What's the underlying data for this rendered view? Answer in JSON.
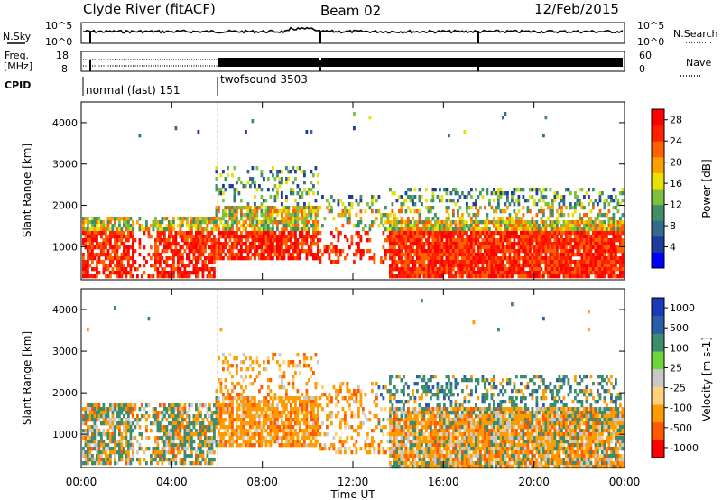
{
  "header": {
    "station": "Clyde River (fitACF)",
    "beam": "Beam 02",
    "date": "12/Feb/2015"
  },
  "strip_nsky": {
    "left_label": "N.Sky",
    "left_ticks": [
      "10^5",
      "10^0"
    ],
    "right_ticks": [
      "10^5",
      "10^0"
    ],
    "right_label": "N.Search"
  },
  "strip_freq": {
    "left_label_1": "Freq.",
    "left_label_2": "[MHz]",
    "left_ticks": [
      "18",
      "8"
    ],
    "right_ticks": [
      "60",
      "0"
    ],
    "right_label": "Nave"
  },
  "cpid": {
    "label": "CPID",
    "segments": [
      {
        "name": "normal (fast) 151",
        "start_hr": 0
      },
      {
        "name": "twofsound 3503",
        "start_hr": 6
      }
    ]
  },
  "colors": {
    "power_scale": [
      "#0000ff",
      "#1e3c9e",
      "#336b8c",
      "#3f8f6a",
      "#7fbf3f",
      "#e8e000",
      "#ffa000",
      "#ff6000",
      "#ff2000",
      "#ff0000"
    ],
    "velocity_scale": [
      "#ff0000",
      "#ff5a00",
      "#ff9a00",
      "#ffd27a",
      "#c8c8c8",
      "#6dd43a",
      "#3c8c6e",
      "#2a5ea8",
      "#1a3ab8"
    ],
    "ground_scatter": "#c0c0c0"
  },
  "chart_data": [
    {
      "type": "heatmap",
      "panel": "power",
      "ylabel": "Slant Range [km]",
      "xlabel": "",
      "xlim_hours": [
        0,
        24
      ],
      "ylim": [
        200,
        4500
      ],
      "y_ticks": [
        "1000",
        "2000",
        "3000",
        "4000"
      ],
      "colorbar_label": "Power [dB]",
      "colorbar_ticks": [
        "4",
        "8",
        "12",
        "16",
        "20",
        "24",
        "28"
      ],
      "colorbar_range": [
        0,
        30
      ]
    },
    {
      "type": "heatmap",
      "panel": "velocity",
      "ylabel": "Slant Range [km]",
      "xlabel": "Time UT",
      "xlim_hours": [
        0,
        24
      ],
      "ylim": [
        200,
        4500
      ],
      "y_ticks": [
        "1000",
        "2000",
        "3000",
        "4000"
      ],
      "x_ticks": [
        "00:00",
        "04:00",
        "08:00",
        "12:00",
        "16:00",
        "20:00",
        "00:00"
      ],
      "colorbar_label": "Velocity [m s-1]",
      "colorbar_ticks": [
        "1000",
        "500",
        "100",
        "25",
        "-25",
        "-100",
        "-500",
        "-1000"
      ]
    }
  ]
}
